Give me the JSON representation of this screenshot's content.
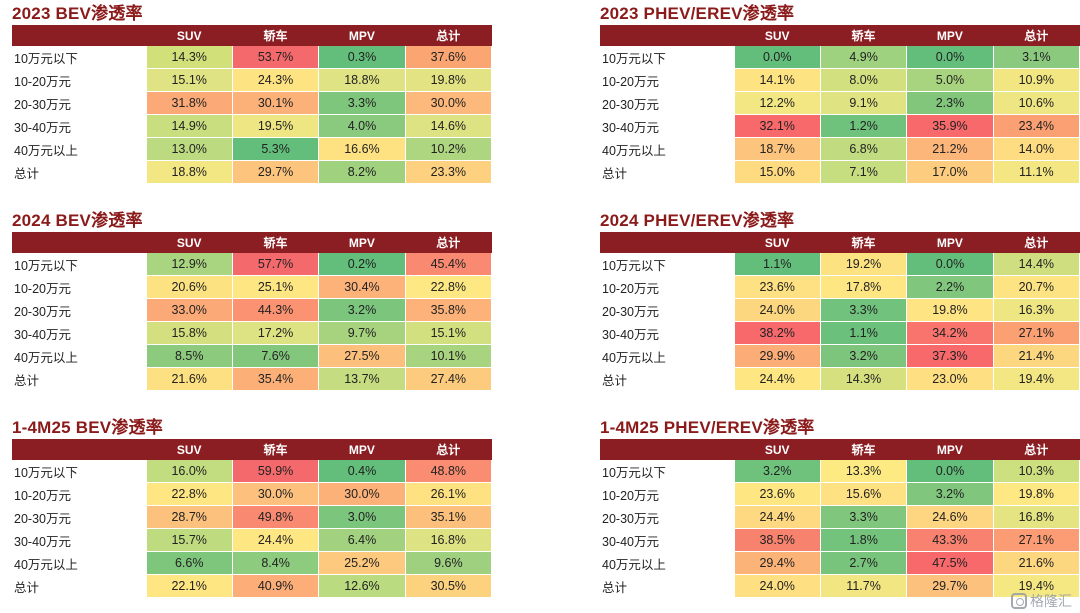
{
  "panels": [
    {
      "title": "2023 BEV渗透率",
      "columns": [
        "SUV",
        "轿车",
        "MPV",
        "总计"
      ],
      "rows": [
        {
          "label": "10万元以下",
          "values": [
            "14.3%",
            "53.7%",
            "0.3%",
            "37.6%"
          ]
        },
        {
          "label": "10-20万元",
          "values": [
            "15.1%",
            "24.3%",
            "18.8%",
            "19.8%"
          ]
        },
        {
          "label": "20-30万元",
          "values": [
            "31.8%",
            "30.1%",
            "3.3%",
            "30.0%"
          ]
        },
        {
          "label": "30-40万元",
          "values": [
            "14.9%",
            "19.5%",
            "4.0%",
            "14.6%"
          ]
        },
        {
          "label": "40万元以上",
          "values": [
            "13.0%",
            "5.3%",
            "16.6%",
            "10.2%"
          ]
        },
        {
          "label": "总计",
          "values": [
            "18.8%",
            "29.7%",
            "8.2%",
            "23.3%"
          ]
        }
      ],
      "colors": [
        [
          "#d2e07a",
          "#f4696b",
          "#63be7b",
          "#fba572"
        ],
        [
          "#dfe383",
          "#fee382",
          "#dfe383",
          "#e3e383"
        ],
        [
          "#fbaa77",
          "#fcb179",
          "#7fc67d",
          "#fdb87b"
        ],
        [
          "#c9df7f",
          "#eee683",
          "#8aca7e",
          "#dde283"
        ],
        [
          "#bcdb80",
          "#63be7b",
          "#fee282",
          "#aed680"
        ],
        [
          "#f2e783",
          "#fdc47d",
          "#9fd17f",
          "#fdd17f"
        ]
      ]
    },
    {
      "title": "2023 PHEV/EREV渗透率",
      "columns": [
        "SUV",
        "轿车",
        "MPV",
        "总计"
      ],
      "rows": [
        {
          "label": "10万元以下",
          "values": [
            "0.0%",
            "4.9%",
            "0.0%",
            "3.1%"
          ]
        },
        {
          "label": "10-20万元",
          "values": [
            "14.1%",
            "8.0%",
            "5.0%",
            "10.9%"
          ]
        },
        {
          "label": "20-30万元",
          "values": [
            "12.2%",
            "9.1%",
            "2.3%",
            "10.6%"
          ]
        },
        {
          "label": "30-40万元",
          "values": [
            "32.1%",
            "1.2%",
            "35.9%",
            "23.4%"
          ]
        },
        {
          "label": "40万元以上",
          "values": [
            "18.7%",
            "6.8%",
            "21.2%",
            "14.0%"
          ]
        },
        {
          "label": "总计",
          "values": [
            "15.0%",
            "7.1%",
            "17.0%",
            "11.1%"
          ]
        }
      ],
      "colors": [
        [
          "#63be7b",
          "#9ed27f",
          "#63be7b",
          "#8ac97e"
        ],
        [
          "#fee382",
          "#d3e07f",
          "#a9d47f",
          "#f2e683"
        ],
        [
          "#f3e783",
          "#e0e382",
          "#82c67c",
          "#eee583"
        ],
        [
          "#f8696b",
          "#6ec27c",
          "#f8696b",
          "#fba073"
        ],
        [
          "#fdc47d",
          "#c0db80",
          "#fdb67a",
          "#fedc81"
        ],
        [
          "#fedb81",
          "#c6dd80",
          "#fdcc7e",
          "#f4e783"
        ]
      ]
    },
    {
      "title": "2024 BEV渗透率",
      "columns": [
        "SUV",
        "轿车",
        "MPV",
        "总计"
      ],
      "rows": [
        {
          "label": "10万元以下",
          "values": [
            "12.9%",
            "57.7%",
            "0.2%",
            "45.4%"
          ]
        },
        {
          "label": "10-20万元",
          "values": [
            "20.6%",
            "25.1%",
            "30.4%",
            "22.8%"
          ]
        },
        {
          "label": "20-30万元",
          "values": [
            "33.0%",
            "44.3%",
            "3.2%",
            "35.8%"
          ]
        },
        {
          "label": "30-40万元",
          "values": [
            "15.8%",
            "17.2%",
            "9.7%",
            "15.1%"
          ]
        },
        {
          "label": "40万元以上",
          "values": [
            "8.5%",
            "7.6%",
            "27.5%",
            "10.1%"
          ]
        },
        {
          "label": "总计",
          "values": [
            "21.6%",
            "35.4%",
            "13.7%",
            "27.4%"
          ]
        }
      ],
      "colors": [
        [
          "#aad580",
          "#f4696b",
          "#63be7b",
          "#f98a71"
        ],
        [
          "#fde282",
          "#fee783",
          "#fcb279",
          "#fde883"
        ],
        [
          "#fbaa77",
          "#fb9372",
          "#7bc57d",
          "#fcb279"
        ],
        [
          "#d4e07f",
          "#dde283",
          "#a7d37f",
          "#d2e07f"
        ],
        [
          "#8cca7e",
          "#83c77d",
          "#fcc07c",
          "#a9d47f"
        ],
        [
          "#fde081",
          "#fcb078",
          "#c5dd80",
          "#fdcb7e"
        ]
      ]
    },
    {
      "title": "2024 PHEV/EREV渗透率",
      "columns": [
        "SUV",
        "轿车",
        "MPV",
        "总计"
      ],
      "rows": [
        {
          "label": "10万元以下",
          "values": [
            "1.1%",
            "19.2%",
            "0.0%",
            "14.4%"
          ]
        },
        {
          "label": "10-20万元",
          "values": [
            "23.6%",
            "17.8%",
            "2.2%",
            "20.7%"
          ]
        },
        {
          "label": "20-30万元",
          "values": [
            "24.0%",
            "3.3%",
            "19.8%",
            "16.3%"
          ]
        },
        {
          "label": "30-40万元",
          "values": [
            "38.2%",
            "1.1%",
            "34.2%",
            "27.1%"
          ]
        },
        {
          "label": "40万元以上",
          "values": [
            "29.9%",
            "3.2%",
            "37.3%",
            "21.4%"
          ]
        },
        {
          "label": "总计",
          "values": [
            "24.4%",
            "14.3%",
            "23.0%",
            "19.4%"
          ]
        }
      ],
      "colors": [
        [
          "#63be7b",
          "#fde282",
          "#63be7b",
          "#cfdf80"
        ],
        [
          "#fde182",
          "#fee783",
          "#81c67d",
          "#fde382"
        ],
        [
          "#fdd680",
          "#70c27c",
          "#fee483",
          "#eee683"
        ],
        [
          "#f8696b",
          "#6bc07c",
          "#f8746d",
          "#fba073"
        ],
        [
          "#fbac77",
          "#7dc57d",
          "#f8696b",
          "#fdd780"
        ],
        [
          "#fee683",
          "#d7e07f",
          "#fee082",
          "#f3e783"
        ]
      ]
    },
    {
      "title": "1-4M25 BEV渗透率",
      "columns": [
        "SUV",
        "轿车",
        "MPV",
        "总计"
      ],
      "rows": [
        {
          "label": "10万元以下",
          "values": [
            "16.0%",
            "59.9%",
            "0.4%",
            "48.8%"
          ]
        },
        {
          "label": "10-20万元",
          "values": [
            "22.8%",
            "30.0%",
            "30.0%",
            "26.1%"
          ]
        },
        {
          "label": "20-30万元",
          "values": [
            "28.7%",
            "49.8%",
            "3.0%",
            "35.1%"
          ]
        },
        {
          "label": "30-40万元",
          "values": [
            "15.7%",
            "24.4%",
            "6.4%",
            "16.8%"
          ]
        },
        {
          "label": "40万元以上",
          "values": [
            "6.6%",
            "8.4%",
            "25.2%",
            "9.6%"
          ]
        },
        {
          "label": "总计",
          "values": [
            "22.1%",
            "40.9%",
            "12.6%",
            "30.5%"
          ]
        }
      ],
      "colors": [
        [
          "#c2dc80",
          "#f4696b",
          "#63be7b",
          "#fa8c71"
        ],
        [
          "#fee783",
          "#fdc17d",
          "#fbb178",
          "#fee282"
        ],
        [
          "#fcc17c",
          "#f98a71",
          "#7bc57d",
          "#fcc07c"
        ],
        [
          "#bedb80",
          "#fee683",
          "#a2d17f",
          "#dde283"
        ],
        [
          "#7fc67d",
          "#8dcb7e",
          "#fdc97e",
          "#9ed07f"
        ],
        [
          "#fee683",
          "#fcad78",
          "#bbdb80",
          "#fdd27f"
        ]
      ]
    },
    {
      "title": "1-4M25 PHEV/EREV渗透率",
      "columns": [
        "SUV",
        "轿车",
        "MPV",
        "总计"
      ],
      "rows": [
        {
          "label": "10万元以下",
          "values": [
            "3.2%",
            "13.3%",
            "0.0%",
            "10.3%"
          ]
        },
        {
          "label": "10-20万元",
          "values": [
            "23.6%",
            "15.6%",
            "3.2%",
            "19.8%"
          ]
        },
        {
          "label": "20-30万元",
          "values": [
            "24.4%",
            "3.3%",
            "24.6%",
            "16.8%"
          ]
        },
        {
          "label": "30-40万元",
          "values": [
            "38.5%",
            "1.8%",
            "43.3%",
            "27.1%"
          ]
        },
        {
          "label": "40万元以上",
          "values": [
            "29.4%",
            "2.7%",
            "47.5%",
            "21.6%"
          ]
        },
        {
          "label": "总计",
          "values": [
            "24.0%",
            "11.7%",
            "29.7%",
            "19.4%"
          ]
        }
      ],
      "colors": [
        [
          "#6ec27c",
          "#feea83",
          "#63be7b",
          "#cde080"
        ],
        [
          "#fee783",
          "#fee183",
          "#80c67d",
          "#fee883"
        ],
        [
          "#fed981",
          "#80c67d",
          "#fed581",
          "#e4e483"
        ],
        [
          "#f7836f",
          "#73c37c",
          "#f8816f",
          "#fc9c74"
        ],
        [
          "#fbb378",
          "#78c47d",
          "#f8696b",
          "#fdd680"
        ],
        [
          "#fee082",
          "#f2e683",
          "#fcc17c",
          "#f5e883"
        ]
      ]
    }
  ],
  "watermark": "格隆汇"
}
